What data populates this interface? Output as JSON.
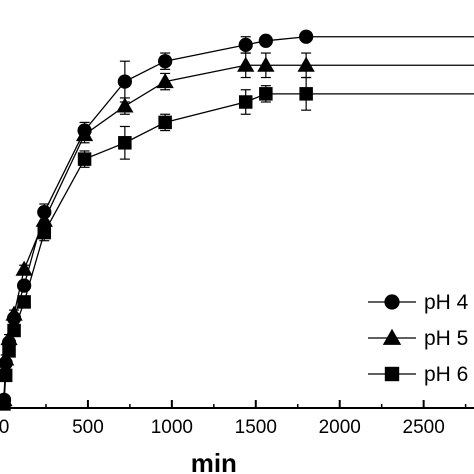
{
  "chart_data": {
    "type": "line",
    "title": "",
    "xlabel": "min",
    "ylabel": "",
    "xlim": [
      0,
      2800
    ],
    "ylim": [
      0,
      1.0
    ],
    "x_ticks": [
      0,
      500,
      1000,
      1500,
      2000,
      2500
    ],
    "x_tick_labels": [
      "0",
      "500",
      "1000",
      "1500",
      "2000",
      "2500"
    ],
    "grid": false,
    "legend_position": "bottom-right",
    "x": [
      0,
      10,
      30,
      60,
      120,
      240,
      480,
      720,
      960,
      1440,
      1560,
      1800,
      2800
    ],
    "series": [
      {
        "name": "pH 4",
        "marker": "circle",
        "values": [
          0.02,
          0.11,
          0.16,
          0.22,
          0.3,
          0.48,
          0.68,
          0.8,
          0.85,
          0.89,
          0.9,
          0.91,
          0.91
        ],
        "errors": [
          0.01,
          0.01,
          0.01,
          0.01,
          0.01,
          0.02,
          0.02,
          0.05,
          0.02,
          0.02,
          0.01,
          0.01,
          0
        ]
      },
      {
        "name": "pH 5",
        "marker": "triangle",
        "values": [
          0.02,
          0.12,
          0.17,
          0.23,
          0.34,
          0.46,
          0.67,
          0.74,
          0.8,
          0.84,
          0.84,
          0.84,
          0.84
        ],
        "errors": [
          0.01,
          0.01,
          0.01,
          0.01,
          0.01,
          0.02,
          0.02,
          0.02,
          0.02,
          0.03,
          0.03,
          0.03,
          0
        ]
      },
      {
        "name": "pH 6",
        "marker": "square",
        "values": [
          0.01,
          0.08,
          0.14,
          0.19,
          0.26,
          0.43,
          0.61,
          0.65,
          0.7,
          0.75,
          0.77,
          0.77,
          0.77
        ],
        "errors": [
          0.01,
          0.01,
          0.01,
          0.01,
          0.01,
          0.02,
          0.02,
          0.04,
          0.02,
          0.03,
          0.02,
          0.04,
          0
        ]
      }
    ]
  }
}
